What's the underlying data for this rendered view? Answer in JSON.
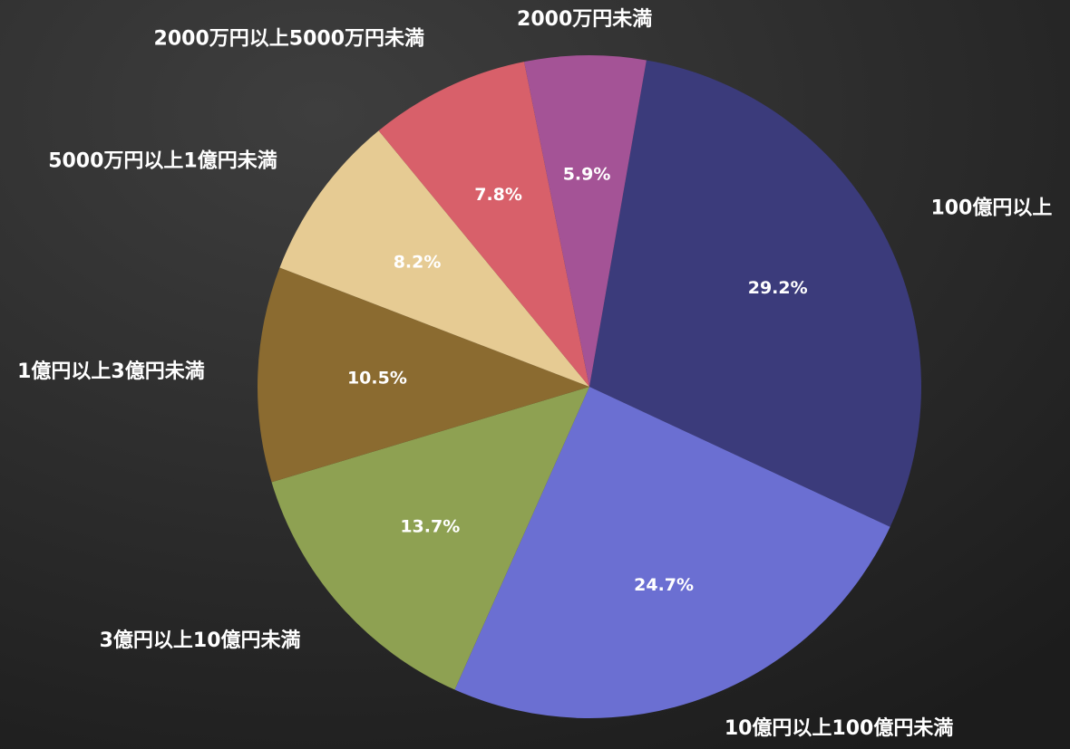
{
  "chart_data": {
    "type": "pie",
    "categories": [
      "100億円以上",
      "10億円以上100億円未満",
      "3億円以上10億円未満",
      "1億円以上3億円未満",
      "5000万円以上1億円未満",
      "2000万円以上5000万円未満",
      "2000万円未満"
    ],
    "values": [
      29.2,
      24.7,
      13.7,
      10.5,
      8.2,
      7.8,
      5.9
    ],
    "value_labels": [
      "29.2%",
      "24.7%",
      "13.7%",
      "10.5%",
      "8.2%",
      "7.8%",
      "5.9%"
    ],
    "colors": [
      "#3b3b7b",
      "#6b6fd2",
      "#8ea152",
      "#8b6b30",
      "#e6cb93",
      "#d8606a",
      "#a45396"
    ]
  }
}
